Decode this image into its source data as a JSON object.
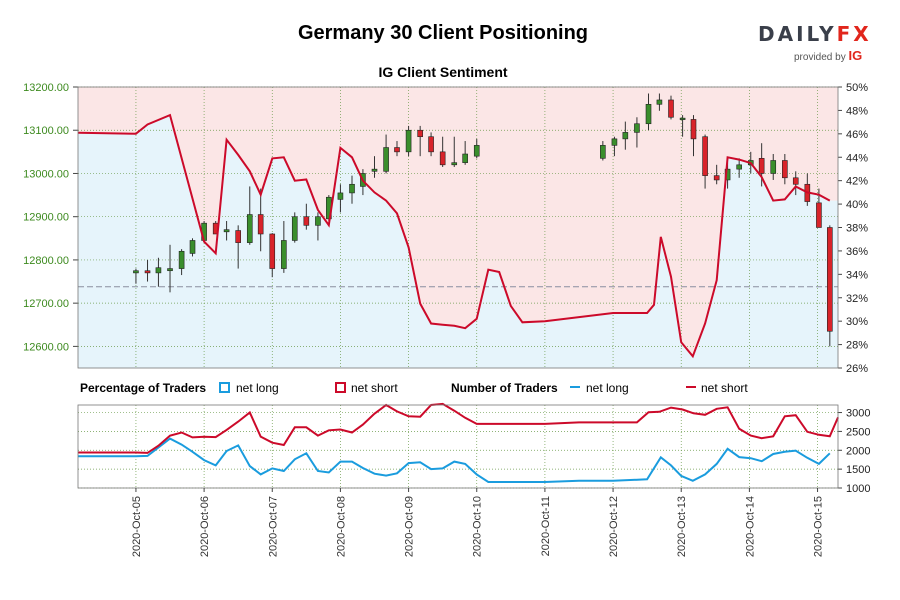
{
  "header": {
    "title": "Germany 30 Client Positioning",
    "subtitle": "IG Client Sentiment",
    "logo": {
      "word_main": "DAILY",
      "word_accent": "FX",
      "provided_by": "provided by",
      "provider": "IG"
    }
  },
  "colors": {
    "long_zone": "#e6f4fb",
    "short_zone": "#fbe6e6",
    "net_long": "#1a9cde",
    "net_short": "#cc0a2a",
    "bull_candle": "#3a8e2c",
    "bear_candle": "#d8232a",
    "axis_text": "#2e7d1a",
    "price_axis_text": "#3d8a1f",
    "grid": "#6a9a4a"
  },
  "legend": {
    "pct_title": "Percentage of Traders",
    "num_title": "Number of Traders",
    "net_long": "net long",
    "net_short": "net short"
  },
  "chart_data": {
    "type": "candlestick",
    "title": "Germany 30 Client Positioning",
    "subtitle": "IG Client Sentiment",
    "x_dates": [
      "2020-Oct-05",
      "2020-Oct-06",
      "2020-Oct-07",
      "2020-Oct-08",
      "2020-Oct-09",
      "2020-Oct-10",
      "2020-Oct-11",
      "2020-Oct-12",
      "2020-Oct-13",
      "2020-Oct-14",
      "2020-Oct-15"
    ],
    "time_range": [
      3.15,
      14.3
    ],
    "price_axis": {
      "ticks": [
        "12600.00",
        "12700.00",
        "12800.00",
        "12900.00",
        "13000.00",
        "13100.00",
        "13200.00"
      ],
      "ylim": [
        12550,
        13200
      ]
    },
    "pct_axis": {
      "ticks": [
        "26%",
        "28%",
        "30%",
        "32%",
        "34%",
        "36%",
        "38%",
        "40%",
        "42%",
        "44%",
        "46%",
        "48%",
        "50%"
      ],
      "ylim": [
        26,
        50
      ]
    },
    "count_axis": {
      "ticks": [
        "1000",
        "1500",
        "2000",
        "2500",
        "3000"
      ],
      "ylim": [
        1000,
        3200
      ]
    },
    "reference_price": 12738,
    "candles": [
      {
        "t": 4.0,
        "o": 12770,
        "h": 12780,
        "l": 12745,
        "c": 12775
      },
      {
        "t": 4.17,
        "o": 12775,
        "h": 12800,
        "l": 12750,
        "c": 12770
      },
      {
        "t": 4.33,
        "o": 12770,
        "h": 12805,
        "l": 12738,
        "c": 12782
      },
      {
        "t": 4.5,
        "o": 12775,
        "h": 12835,
        "l": 12725,
        "c": 12780
      },
      {
        "t": 4.67,
        "o": 12780,
        "h": 12825,
        "l": 12765,
        "c": 12820
      },
      {
        "t": 4.83,
        "o": 12815,
        "h": 12850,
        "l": 12808,
        "c": 12845
      },
      {
        "t": 5.0,
        "o": 12845,
        "h": 12890,
        "l": 12840,
        "c": 12885
      },
      {
        "t": 5.17,
        "o": 12885,
        "h": 12890,
        "l": 12860,
        "c": 12860
      },
      {
        "t": 5.33,
        "o": 12865,
        "h": 12890,
        "l": 12845,
        "c": 12870
      },
      {
        "t": 5.5,
        "o": 12868,
        "h": 12880,
        "l": 12780,
        "c": 12840
      },
      {
        "t": 5.67,
        "o": 12840,
        "h": 12970,
        "l": 12835,
        "c": 12905
      },
      {
        "t": 5.83,
        "o": 12905,
        "h": 12965,
        "l": 12820,
        "c": 12860
      },
      {
        "t": 6.0,
        "o": 12860,
        "h": 12862,
        "l": 12760,
        "c": 12780
      },
      {
        "t": 6.17,
        "o": 12780,
        "h": 12890,
        "l": 12770,
        "c": 12845
      },
      {
        "t": 6.33,
        "o": 12845,
        "h": 12910,
        "l": 12840,
        "c": 12900
      },
      {
        "t": 6.5,
        "o": 12900,
        "h": 12930,
        "l": 12870,
        "c": 12880
      },
      {
        "t": 6.67,
        "o": 12880,
        "h": 12910,
        "l": 12845,
        "c": 12900
      },
      {
        "t": 6.83,
        "o": 12895,
        "h": 12950,
        "l": 12890,
        "c": 12945
      },
      {
        "t": 7.0,
        "o": 12940,
        "h": 12975,
        "l": 12910,
        "c": 12955
      },
      {
        "t": 7.17,
        "o": 12955,
        "h": 12995,
        "l": 12930,
        "c": 12975
      },
      {
        "t": 7.33,
        "o": 12970,
        "h": 13010,
        "l": 12950,
        "c": 13000
      },
      {
        "t": 7.5,
        "o": 13005,
        "h": 13040,
        "l": 12990,
        "c": 13010
      },
      {
        "t": 7.67,
        "o": 13005,
        "h": 13090,
        "l": 13000,
        "c": 13060
      },
      {
        "t": 7.83,
        "o": 13060,
        "h": 13075,
        "l": 13040,
        "c": 13050
      },
      {
        "t": 8.0,
        "o": 13050,
        "h": 13110,
        "l": 13040,
        "c": 13100
      },
      {
        "t": 8.17,
        "o": 13100,
        "h": 13110,
        "l": 13040,
        "c": 13085
      },
      {
        "t": 8.33,
        "o": 13085,
        "h": 13095,
        "l": 13040,
        "c": 13050
      },
      {
        "t": 8.5,
        "o": 13050,
        "h": 13085,
        "l": 13015,
        "c": 13020
      },
      {
        "t": 8.67,
        "o": 13020,
        "h": 13085,
        "l": 13015,
        "c": 13025
      },
      {
        "t": 8.83,
        "o": 13025,
        "h": 13075,
        "l": 13020,
        "c": 13045
      },
      {
        "t": 9.0,
        "o": 13040,
        "h": 13080,
        "l": 13035,
        "c": 13065
      },
      {
        "t": 10.85,
        "o": 13035,
        "h": 13075,
        "l": 13030,
        "c": 13065
      },
      {
        "t": 11.02,
        "o": 13065,
        "h": 13085,
        "l": 13040,
        "c": 13080
      },
      {
        "t": 11.18,
        "o": 13080,
        "h": 13120,
        "l": 13055,
        "c": 13095
      },
      {
        "t": 11.35,
        "o": 13095,
        "h": 13130,
        "l": 13060,
        "c": 13115
      },
      {
        "t": 11.52,
        "o": 13115,
        "h": 13185,
        "l": 13100,
        "c": 13160
      },
      {
        "t": 11.68,
        "o": 13160,
        "h": 13185,
        "l": 13145,
        "c": 13170
      },
      {
        "t": 11.85,
        "o": 13170,
        "h": 13180,
        "l": 13125,
        "c": 13130
      },
      {
        "t": 12.02,
        "o": 13128,
        "h": 13135,
        "l": 13085,
        "c": 13128
      },
      {
        "t": 12.18,
        "o": 13125,
        "h": 13135,
        "l": 13040,
        "c": 13080
      },
      {
        "t": 12.35,
        "o": 13085,
        "h": 13090,
        "l": 12965,
        "c": 12995
      },
      {
        "t": 12.52,
        "o": 12995,
        "h": 13020,
        "l": 12975,
        "c": 12985
      },
      {
        "t": 12.68,
        "o": 12985,
        "h": 13025,
        "l": 12965,
        "c": 13010
      },
      {
        "t": 12.85,
        "o": 13010,
        "h": 13035,
        "l": 12990,
        "c": 13020
      },
      {
        "t": 13.02,
        "o": 13020,
        "h": 13050,
        "l": 13000,
        "c": 13030
      },
      {
        "t": 13.18,
        "o": 13035,
        "h": 13070,
        "l": 12970,
        "c": 13000
      },
      {
        "t": 13.35,
        "o": 13000,
        "h": 13045,
        "l": 12985,
        "c": 13030
      },
      {
        "t": 13.52,
        "o": 13030,
        "h": 13045,
        "l": 12975,
        "c": 12990
      },
      {
        "t": 13.68,
        "o": 12990,
        "h": 13005,
        "l": 12950,
        "c": 12975
      },
      {
        "t": 13.85,
        "o": 12975,
        "h": 13000,
        "l": 12925,
        "c": 12935
      },
      {
        "t": 14.02,
        "o": 12932,
        "h": 12965,
        "l": 12875,
        "c": 12875
      },
      {
        "t": 14.18,
        "o": 12875,
        "h": 12880,
        "l": 12600,
        "c": 12635
      }
    ],
    "net_short_pct": [
      [
        3.15,
        46.1
      ],
      [
        4.0,
        46.0
      ],
      [
        4.17,
        46.8
      ],
      [
        4.5,
        47.6
      ],
      [
        5.0,
        36.8
      ],
      [
        5.17,
        35.8
      ],
      [
        5.33,
        45.5
      ],
      [
        5.5,
        44.2
      ],
      [
        5.67,
        42.8
      ],
      [
        5.83,
        40.8
      ],
      [
        6.0,
        43.9
      ],
      [
        6.17,
        44.0
      ],
      [
        6.33,
        42.0
      ],
      [
        6.5,
        42.1
      ],
      [
        6.67,
        39.5
      ],
      [
        6.83,
        38.2
      ],
      [
        7.0,
        44.8
      ],
      [
        7.17,
        44.0
      ],
      [
        7.33,
        42.0
      ],
      [
        7.5,
        41.0
      ],
      [
        7.67,
        40.3
      ],
      [
        7.83,
        39.2
      ],
      [
        8.0,
        36.3
      ],
      [
        8.17,
        31.5
      ],
      [
        8.33,
        29.8
      ],
      [
        8.5,
        29.7
      ],
      [
        8.67,
        29.6
      ],
      [
        8.83,
        29.4
      ],
      [
        9.0,
        30.2
      ],
      [
        9.17,
        34.4
      ],
      [
        9.33,
        34.2
      ],
      [
        9.5,
        31.3
      ],
      [
        9.67,
        29.9
      ],
      [
        10.0,
        30.0
      ],
      [
        11.0,
        30.7
      ],
      [
        11.5,
        30.7
      ],
      [
        11.6,
        31.4
      ],
      [
        11.7,
        37.2
      ],
      [
        11.85,
        33.8
      ],
      [
        12.0,
        28.2
      ],
      [
        12.17,
        27.0
      ],
      [
        12.35,
        29.8
      ],
      [
        12.52,
        33.5
      ],
      [
        12.68,
        44.0
      ],
      [
        12.85,
        43.8
      ],
      [
        13.02,
        43.5
      ],
      [
        13.18,
        42.3
      ],
      [
        13.35,
        40.3
      ],
      [
        13.52,
        40.4
      ],
      [
        13.68,
        41.5
      ],
      [
        13.85,
        41.0
      ],
      [
        14.02,
        40.8
      ],
      [
        14.18,
        40.3
      ]
    ],
    "net_long_count": [
      [
        3.15,
        1840
      ],
      [
        4.0,
        1840
      ],
      [
        4.17,
        1850
      ],
      [
        4.5,
        2310
      ],
      [
        4.67,
        2150
      ],
      [
        4.83,
        1960
      ],
      [
        5.0,
        1740
      ],
      [
        5.17,
        1600
      ],
      [
        5.33,
        1980
      ],
      [
        5.5,
        2130
      ],
      [
        5.67,
        1580
      ],
      [
        5.83,
        1360
      ],
      [
        6.0,
        1520
      ],
      [
        6.17,
        1450
      ],
      [
        6.33,
        1760
      ],
      [
        6.5,
        1920
      ],
      [
        6.67,
        1450
      ],
      [
        6.83,
        1410
      ],
      [
        7.0,
        1700
      ],
      [
        7.17,
        1700
      ],
      [
        7.33,
        1530
      ],
      [
        7.5,
        1380
      ],
      [
        7.67,
        1330
      ],
      [
        7.83,
        1390
      ],
      [
        8.0,
        1660
      ],
      [
        8.17,
        1680
      ],
      [
        8.33,
        1500
      ],
      [
        8.5,
        1520
      ],
      [
        8.67,
        1700
      ],
      [
        8.83,
        1640
      ],
      [
        9.0,
        1360
      ],
      [
        9.17,
        1160
      ],
      [
        10.0,
        1160
      ],
      [
        10.5,
        1190
      ],
      [
        11.0,
        1190
      ],
      [
        11.5,
        1230
      ],
      [
        11.7,
        1810
      ],
      [
        11.85,
        1600
      ],
      [
        12.0,
        1320
      ],
      [
        12.17,
        1190
      ],
      [
        12.35,
        1360
      ],
      [
        12.52,
        1640
      ],
      [
        12.68,
        2040
      ],
      [
        12.85,
        1820
      ],
      [
        13.02,
        1790
      ],
      [
        13.18,
        1710
      ],
      [
        13.35,
        1900
      ],
      [
        13.52,
        1960
      ],
      [
        13.68,
        1990
      ],
      [
        13.85,
        1800
      ],
      [
        14.02,
        1640
      ],
      [
        14.18,
        1920
      ]
    ],
    "net_short_count": [
      [
        3.15,
        1940
      ],
      [
        4.0,
        1940
      ],
      [
        4.17,
        1930
      ],
      [
        4.33,
        2120
      ],
      [
        4.5,
        2390
      ],
      [
        4.67,
        2470
      ],
      [
        4.83,
        2340
      ],
      [
        5.0,
        2360
      ],
      [
        5.17,
        2350
      ],
      [
        5.33,
        2540
      ],
      [
        5.5,
        2760
      ],
      [
        5.67,
        3000
      ],
      [
        5.83,
        2360
      ],
      [
        6.0,
        2200
      ],
      [
        6.17,
        2140
      ],
      [
        6.33,
        2610
      ],
      [
        6.5,
        2610
      ],
      [
        6.67,
        2390
      ],
      [
        6.83,
        2530
      ],
      [
        7.0,
        2550
      ],
      [
        7.17,
        2470
      ],
      [
        7.33,
        2680
      ],
      [
        7.5,
        2970
      ],
      [
        7.67,
        3200
      ],
      [
        7.83,
        3030
      ],
      [
        8.0,
        2900
      ],
      [
        8.17,
        2890
      ],
      [
        8.33,
        3200
      ],
      [
        8.5,
        3230
      ],
      [
        8.67,
        3050
      ],
      [
        8.83,
        2860
      ],
      [
        9.0,
        2700
      ],
      [
        10.0,
        2700
      ],
      [
        10.5,
        2740
      ],
      [
        11.0,
        2740
      ],
      [
        11.35,
        2740
      ],
      [
        11.52,
        3010
      ],
      [
        11.68,
        3020
      ],
      [
        11.85,
        3130
      ],
      [
        12.02,
        3080
      ],
      [
        12.18,
        2980
      ],
      [
        12.35,
        2940
      ],
      [
        12.52,
        3100
      ],
      [
        12.68,
        3140
      ],
      [
        12.85,
        2570
      ],
      [
        13.02,
        2390
      ],
      [
        13.18,
        2320
      ],
      [
        13.35,
        2370
      ],
      [
        13.52,
        2900
      ],
      [
        13.68,
        2930
      ],
      [
        13.85,
        2490
      ],
      [
        14.02,
        2410
      ],
      [
        14.18,
        2370
      ],
      [
        14.3,
        2870
      ]
    ]
  }
}
